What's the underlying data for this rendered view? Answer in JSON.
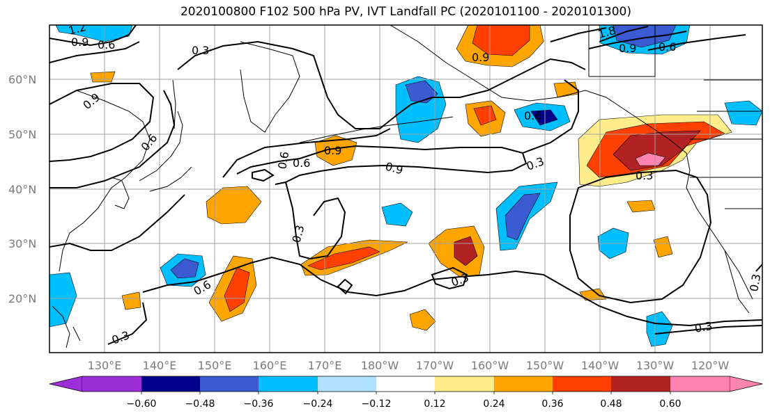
{
  "title": "2020100800 F102 500 hPa PV, IVT Landfall PC (2020101100 - 2020101300)",
  "lat_ticks": [
    "60°N",
    "50°N",
    "40°N",
    "30°N",
    "20°N"
  ],
  "lon_ticks": [
    "130°E",
    "140°E",
    "150°E",
    "160°E",
    "170°E",
    "180°W",
    "170°W",
    "160°W",
    "150°W",
    "140°W",
    "130°W",
    "120°W"
  ],
  "colorbar": {
    "tick_labels": [
      "−0.60",
      "−0.48",
      "−0.36",
      "−0.24",
      "−0.12",
      "0.12",
      "0.24",
      "0.36",
      "0.48",
      "0.60"
    ],
    "colors": [
      "#9b30d9",
      "#00008b",
      "#3a5bd2",
      "#00bfff",
      "#b0e2ff",
      "#ffffff",
      "#ffec8b",
      "#ffa500",
      "#ff4000",
      "#b22222",
      "#ff85b0"
    ]
  },
  "contour_labels": [
    "1.2",
    "0.9",
    "0.6",
    "0.3",
    "0.9",
    "0.6",
    "0.9",
    "0.6",
    "0.9",
    "0.3",
    "0.9",
    "0.6",
    "0.3",
    "0.3",
    "0.6",
    "0.3",
    "0.3",
    "0.3",
    "0.3",
    "1.8",
    "0.9",
    "0.6",
    "0.6"
  ],
  "colors": {
    "contour": "#000000",
    "grid": "#a0a0a0",
    "coast": "#000000"
  }
}
